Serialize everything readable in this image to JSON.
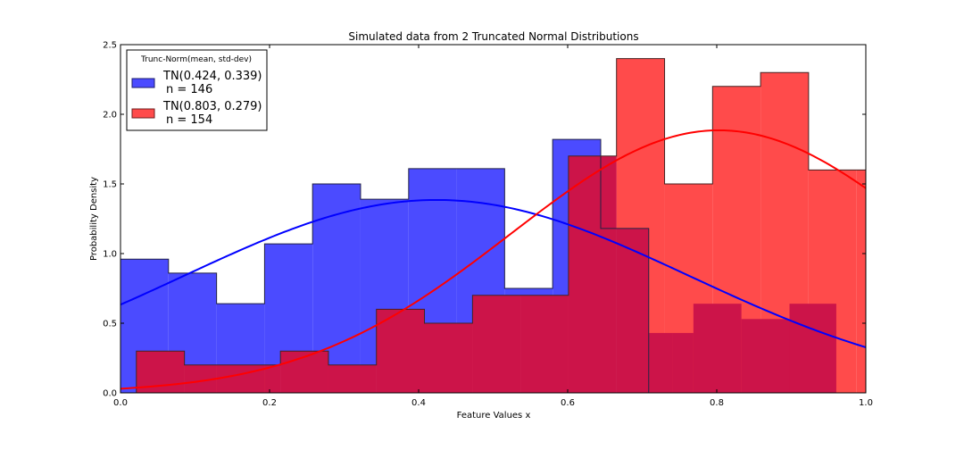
{
  "chart_data": {
    "type": "histogram",
    "title": "Simulated data from 2 Truncated Normal Distributions",
    "xlabel": "Feature Values x",
    "ylabel": "Probability Density",
    "xlim": [
      0.0,
      1.0
    ],
    "ylim": [
      0.0,
      2.5
    ],
    "xticks": [
      0.0,
      0.2,
      0.4,
      0.6,
      0.8,
      1.0
    ],
    "xtick_labels": [
      "0.0",
      "0.2",
      "0.4",
      "0.6",
      "0.8",
      "1.0"
    ],
    "yticks": [
      0.0,
      0.5,
      1.0,
      1.5,
      2.0,
      2.5
    ],
    "ytick_labels": [
      "0.0",
      "0.5",
      "1.0",
      "1.5",
      "2.0",
      "2.5"
    ],
    "grid": false,
    "legend": {
      "title": "Trunc-Norm(mean, std-dev)",
      "placement": "top-left"
    },
    "series": [
      {
        "name": "TN(0.424, 0.339)",
        "note": "n = 146",
        "color": "#0000ff",
        "fill_alpha": 0.7,
        "bin_edges": [
          0.0,
          0.0322,
          0.0966,
          0.1611,
          0.2255,
          0.2899,
          0.3543,
          0.4187,
          0.4832,
          0.5476,
          0.612,
          0.6764,
          0.7408,
          0.8053,
          0.8697,
          0.9341,
          0.9985
        ],
        "density": [
          0.96,
          0.86,
          0.64,
          1.07,
          1.5,
          1.39,
          1.61,
          1.61,
          0.75,
          1.82,
          1.18,
          0.0,
          0.0,
          0.0,
          0.0,
          0.0
        ],
        "bin_edges_visible": [
          0.0,
          0.0644,
          0.1289,
          0.1933,
          0.2577,
          0.3221,
          0.3866,
          0.451,
          0.5154,
          0.5798,
          0.6443,
          0.7087
        ],
        "density_visible": [
          0.96,
          0.86,
          0.64,
          1.07,
          1.5,
          1.39,
          1.61,
          1.61,
          0.75,
          1.82,
          1.18
        ],
        "curve": {
          "mean": 0.424,
          "std": 0.339,
          "peak": 1.385
        }
      },
      {
        "name": "TN(0.803, 0.279)",
        "note": "n = 154",
        "color": "#ff0000",
        "fill_alpha": 0.7,
        "bin_edges_visible": [
          0.0213,
          0.0858,
          0.1502,
          0.2146,
          0.279,
          0.3434,
          0.4078,
          0.4723,
          0.5367,
          0.6011,
          0.6655,
          0.73,
          0.7944,
          0.8588,
          0.9232,
          0.9877,
          1.0
        ],
        "density_visible": [
          0.3,
          0.2,
          0.2,
          0.3,
          0.2,
          0.6,
          0.5,
          0.7,
          0.7,
          1.7,
          2.4,
          1.5,
          2.2,
          2.3,
          1.6,
          1.6
        ],
        "curve": {
          "mean": 0.803,
          "std": 0.279,
          "peak": 1.885
        }
      }
    ],
    "overlay": {
      "color": "#cc1449",
      "red_bins": [
        [
          0.0213,
          0.0858,
          0.3
        ],
        [
          0.0858,
          0.1502,
          0.2
        ],
        [
          0.1502,
          0.2146,
          0.2
        ],
        [
          0.2146,
          0.279,
          0.3
        ],
        [
          0.279,
          0.3434,
          0.2
        ],
        [
          0.3434,
          0.4078,
          0.6
        ],
        [
          0.4078,
          0.4723,
          0.5
        ],
        [
          0.4723,
          0.5367,
          0.7
        ],
        [
          0.5367,
          0.6011,
          0.7
        ],
        [
          0.6011,
          0.6655,
          1.7
        ],
        [
          0.6655,
          0.73,
          2.4
        ],
        [
          0.73,
          0.7944,
          1.5
        ],
        [
          0.7944,
          0.8588,
          2.2
        ],
        [
          0.8588,
          0.9232,
          2.3
        ],
        [
          0.9232,
          0.9877,
          1.6
        ],
        [
          0.9877,
          1.0,
          1.6
        ]
      ],
      "blue_bins": [
        [
          0.0,
          0.0644,
          0.96
        ],
        [
          0.0644,
          0.1289,
          0.86
        ],
        [
          0.1289,
          0.1933,
          0.64
        ],
        [
          0.1933,
          0.2577,
          1.07
        ],
        [
          0.2577,
          0.3221,
          1.5
        ],
        [
          0.3221,
          0.3866,
          1.39
        ],
        [
          0.3866,
          0.451,
          1.61
        ],
        [
          0.451,
          0.5154,
          1.61
        ],
        [
          0.5154,
          0.5798,
          0.75
        ],
        [
          0.5798,
          0.6443,
          1.82
        ],
        [
          0.6443,
          0.7087,
          1.18
        ]
      ],
      "red_front": [
        [
          0.0213,
          0.0858,
          0.3
        ],
        [
          0.0858,
          0.1289,
          0.2
        ],
        [
          0.1289,
          0.1933,
          0.2
        ],
        [
          0.1933,
          0.2146,
          0.2
        ],
        [
          0.2146,
          0.279,
          0.3
        ],
        [
          0.279,
          0.3434,
          0.2
        ],
        [
          0.3434,
          0.4078,
          0.6
        ],
        [
          0.4078,
          0.4723,
          0.5
        ],
        [
          0.4723,
          0.5367,
          0.7
        ],
        [
          0.5367,
          0.6011,
          0.7
        ],
        [
          0.6011,
          0.6655,
          1.7
        ],
        [
          0.6655,
          0.7087,
          1.18
        ],
        [
          0.7087,
          0.7408,
          0.43
        ],
        [
          0.7408,
          0.7687,
          0.43
        ],
        [
          0.7687,
          0.8331,
          0.64
        ],
        [
          0.8331,
          0.8976,
          0.53
        ],
        [
          0.8976,
          0.9604,
          0.64
        ]
      ]
    }
  }
}
